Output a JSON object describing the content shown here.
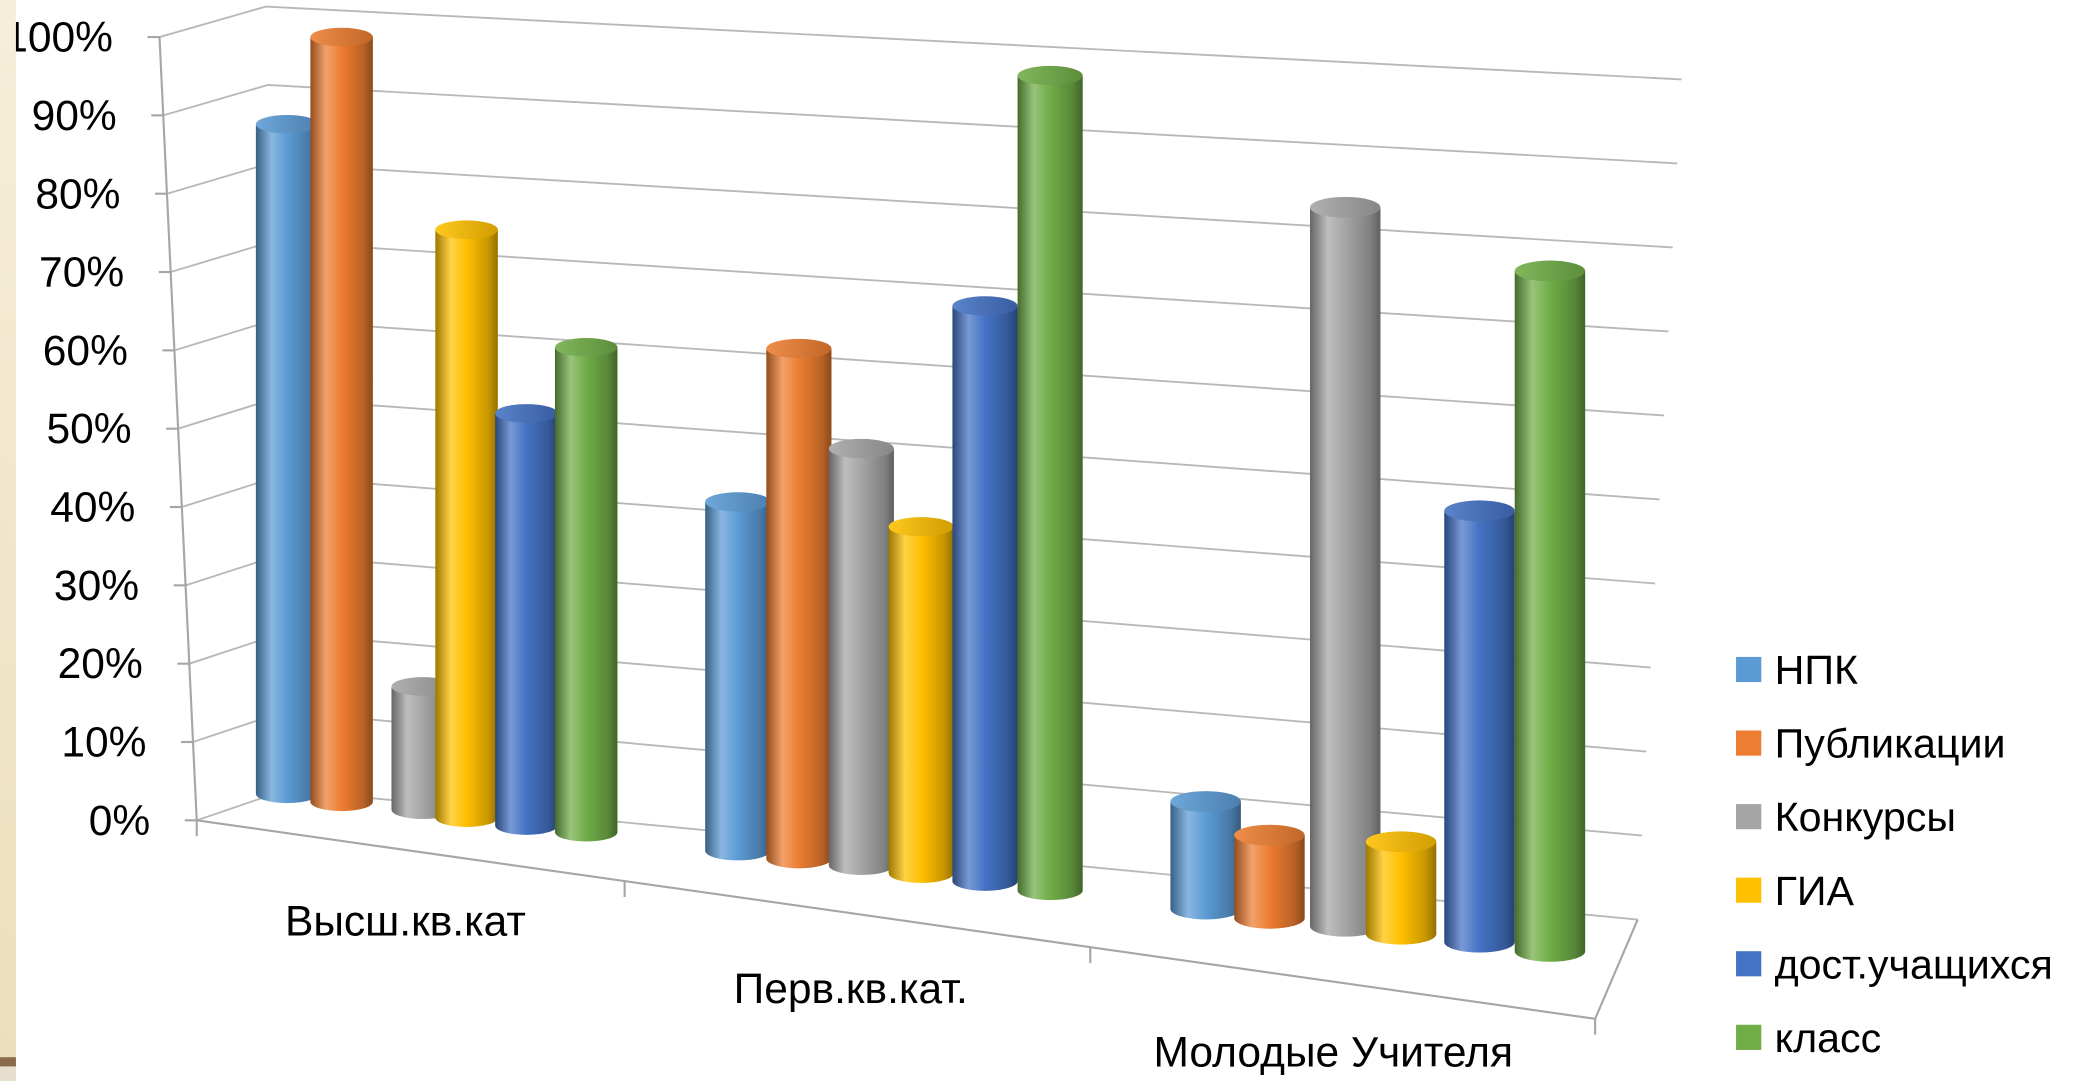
{
  "chart_data": {
    "type": "bar",
    "style": "3d-cylinder",
    "categories": [
      "Высш.кв.кат",
      "Перв.кв.кат.",
      "Молодые Учителя"
    ],
    "series": [
      {
        "name": "НПК",
        "color": "#5b9bd5",
        "values": [
          88,
          44,
          13
        ]
      },
      {
        "name": "Публикации",
        "color": "#ed7d31",
        "values": [
          100,
          64,
          10
        ]
      },
      {
        "name": "Конкурсы",
        "color": "#a5a5a5",
        "values": [
          16,
          52,
          86
        ]
      },
      {
        "name": "ГИА",
        "color": "#ffc000",
        "values": [
          76,
          43,
          11
        ]
      },
      {
        "name": "дост.учащихся",
        "color": "#4472c4",
        "values": [
          53,
          71,
          51
        ]
      },
      {
        "name": "класс",
        "color": "#70ad47",
        "values": [
          62,
          100,
          80
        ]
      }
    ],
    "yticks": [
      "0%",
      "10%",
      "20%",
      "30%",
      "40%",
      "50%",
      "60%",
      "70%",
      "80%",
      "90%",
      "100%"
    ],
    "ylim": [
      0,
      100
    ],
    "value_unit": "%",
    "grid": true,
    "legend": "right"
  }
}
